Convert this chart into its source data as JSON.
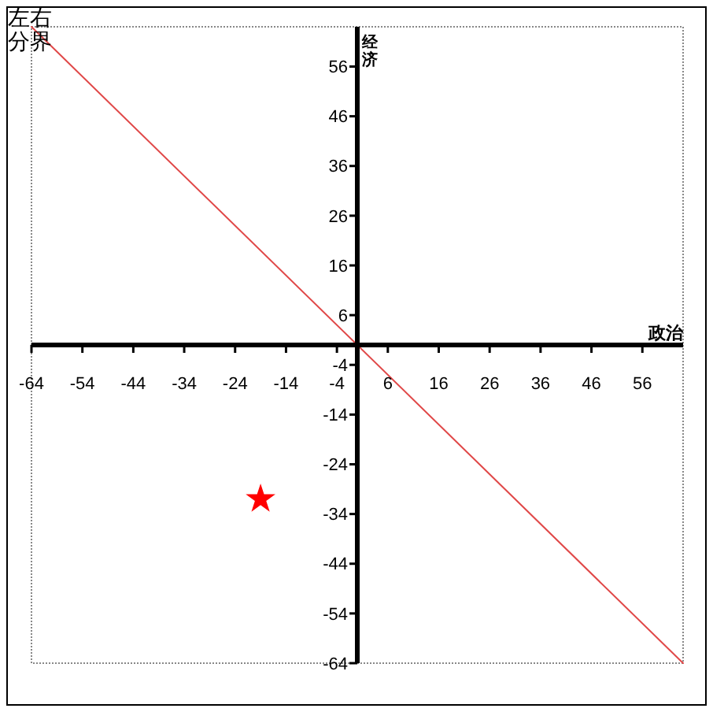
{
  "chart_data": {
    "type": "scatter",
    "xlabel": "政治",
    "ylabel": "经济",
    "xlim": [
      -64,
      64
    ],
    "ylim": [
      -64,
      64
    ],
    "xticks": [
      -64,
      -54,
      -44,
      -34,
      -24,
      -14,
      -4,
      6,
      16,
      26,
      36,
      46,
      56
    ],
    "yticks": [
      -64,
      -54,
      -44,
      -34,
      -24,
      -14,
      -4,
      6,
      16,
      26,
      36,
      46,
      56
    ],
    "series": [
      {
        "type": "line",
        "name": "左右分界",
        "color": "#e04848",
        "x": [
          -64,
          64
        ],
        "values": [
          64,
          -64
        ]
      },
      {
        "color": "#ff0000",
        "x": [
          -19
        ],
        "values": [
          -31
        ],
        "marker": "star"
      }
    ]
  }
}
